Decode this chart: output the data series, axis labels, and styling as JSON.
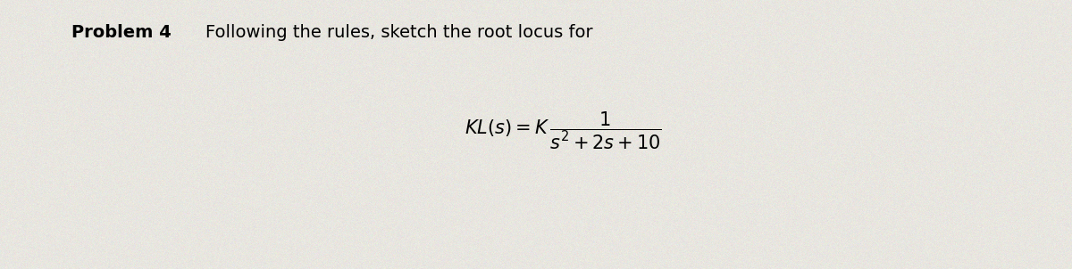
{
  "background_color": "#e8e6e0",
  "problem_label": "Problem 4",
  "problem_label_fontsize": 14,
  "problem_label_fontweight": "bold",
  "description_text": "Following the rules, sketch the root locus for",
  "description_fontsize": 14,
  "formula_fontsize": 15
}
